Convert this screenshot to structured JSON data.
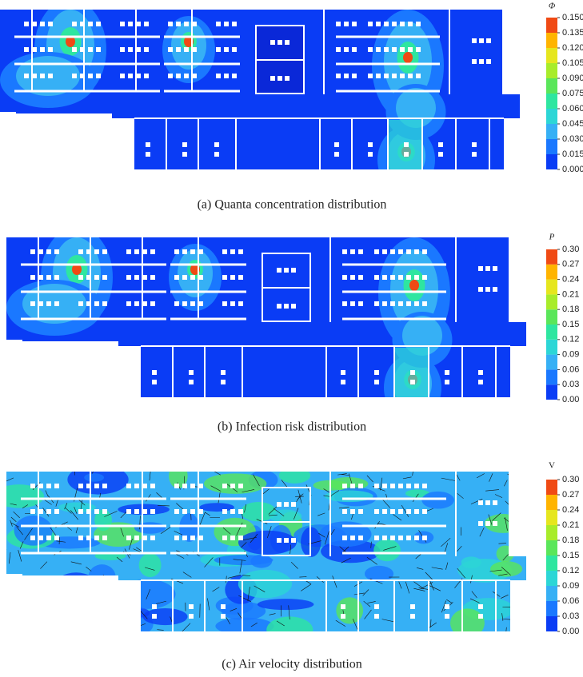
{
  "panels": [
    {
      "caption": "(a) Quanta concentration distribution",
      "colorbar": {
        "title": "Φ",
        "italic": true,
        "ticks": [
          {
            "value": 0,
            "label": "0.000"
          },
          {
            "value": 0.015,
            "label": "0.015"
          },
          {
            "value": 0.03,
            "label": "0.030"
          },
          {
            "value": 0.045,
            "label": "0.045"
          },
          {
            "value": 0.06,
            "label": "0.060"
          },
          {
            "value": 0.075,
            "label": "0.075"
          },
          {
            "value": 0.09,
            "label": "0.090"
          },
          {
            "value": 0.105,
            "label": "0.105"
          },
          {
            "value": 0.12,
            "label": "0.120"
          },
          {
            "value": 0.135,
            "label": "0.135"
          },
          {
            "value": 0.15,
            "label": "0.150"
          }
        ],
        "colors": [
          "#0a3cf5",
          "#1a78ff",
          "#36b0f5",
          "#2cd6d6",
          "#2ee6a0",
          "#5ae65a",
          "#a8ec2a",
          "#e6e61e",
          "#ffb400",
          "#f04a14"
        ]
      }
    },
    {
      "caption": "(b) Infection risk distribution",
      "colorbar": {
        "title": "P",
        "italic": true,
        "ticks": [
          {
            "value": 0,
            "label": "0.00"
          },
          {
            "value": 0.03,
            "label": "0.03"
          },
          {
            "value": 0.06,
            "label": "0.06"
          },
          {
            "value": 0.09,
            "label": "0.09"
          },
          {
            "value": 0.12,
            "label": "0.12"
          },
          {
            "value": 0.15,
            "label": "0.15"
          },
          {
            "value": 0.18,
            "label": "0.18"
          },
          {
            "value": 0.21,
            "label": "0.21"
          },
          {
            "value": 0.24,
            "label": "0.24"
          },
          {
            "value": 0.27,
            "label": "0.27"
          },
          {
            "value": 0.3,
            "label": "0.30"
          }
        ],
        "colors": [
          "#0a3cf5",
          "#1a78ff",
          "#36b0f5",
          "#2cd6d6",
          "#2ee6a0",
          "#5ae65a",
          "#a8ec2a",
          "#e6e61e",
          "#ffb400",
          "#f04a14"
        ]
      }
    },
    {
      "caption": "(c) Air velocity distribution",
      "colorbar": {
        "title": "V",
        "italic": false,
        "ticks": [
          {
            "value": 0,
            "label": "0.00"
          },
          {
            "value": 0.03,
            "label": "0.03"
          },
          {
            "value": 0.06,
            "label": "0.06"
          },
          {
            "value": 0.09,
            "label": "0.09"
          },
          {
            "value": 0.12,
            "label": "0.12"
          },
          {
            "value": 0.15,
            "label": "0.15"
          },
          {
            "value": 0.18,
            "label": "0.18"
          },
          {
            "value": 0.21,
            "label": "0.21"
          },
          {
            "value": 0.24,
            "label": "0.24"
          },
          {
            "value": 0.27,
            "label": "0.27"
          },
          {
            "value": 0.3,
            "label": "0.30"
          }
        ],
        "colors": [
          "#0a3cf5",
          "#1a78ff",
          "#36b0f5",
          "#2cd6d6",
          "#2ee6a0",
          "#5ae65a",
          "#a8ec2a",
          "#e6e61e",
          "#ffb400",
          "#f04a14"
        ]
      }
    }
  ]
}
